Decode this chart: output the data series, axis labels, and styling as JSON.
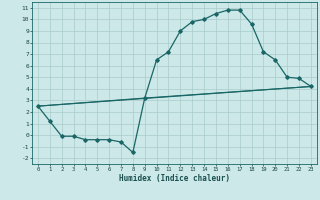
{
  "title": "",
  "xlabel": "Humidex (Indice chaleur)",
  "background_color": "#cce8e8",
  "grid_color": "#aacccc",
  "line_color": "#1a6666",
  "xlim": [
    -0.5,
    23.5
  ],
  "ylim": [
    -2.5,
    11.5
  ],
  "xticks": [
    0,
    1,
    2,
    3,
    4,
    5,
    6,
    7,
    8,
    9,
    10,
    11,
    12,
    13,
    14,
    15,
    16,
    17,
    18,
    19,
    20,
    21,
    22,
    23
  ],
  "yticks": [
    -2,
    -1,
    0,
    1,
    2,
    3,
    4,
    5,
    6,
    7,
    8,
    9,
    10,
    11
  ],
  "line1_x": [
    0,
    1,
    2,
    3,
    4,
    5,
    6,
    7,
    8,
    9,
    10,
    11,
    12,
    13,
    14,
    15,
    16,
    17,
    18,
    19,
    20,
    21,
    22,
    23
  ],
  "line1_y": [
    2.5,
    1.2,
    -0.1,
    -0.1,
    -0.4,
    -0.4,
    -0.4,
    -0.6,
    -1.5,
    3.2,
    6.5,
    7.2,
    9.0,
    9.8,
    10.0,
    10.5,
    10.8,
    10.8,
    9.6,
    7.2,
    6.5,
    5.0,
    4.9,
    4.2
  ],
  "line2_x": [
    0,
    23
  ],
  "line2_y": [
    2.5,
    4.2
  ],
  "line3_x": [
    0,
    9,
    23
  ],
  "line3_y": [
    2.5,
    3.2,
    4.2
  ]
}
